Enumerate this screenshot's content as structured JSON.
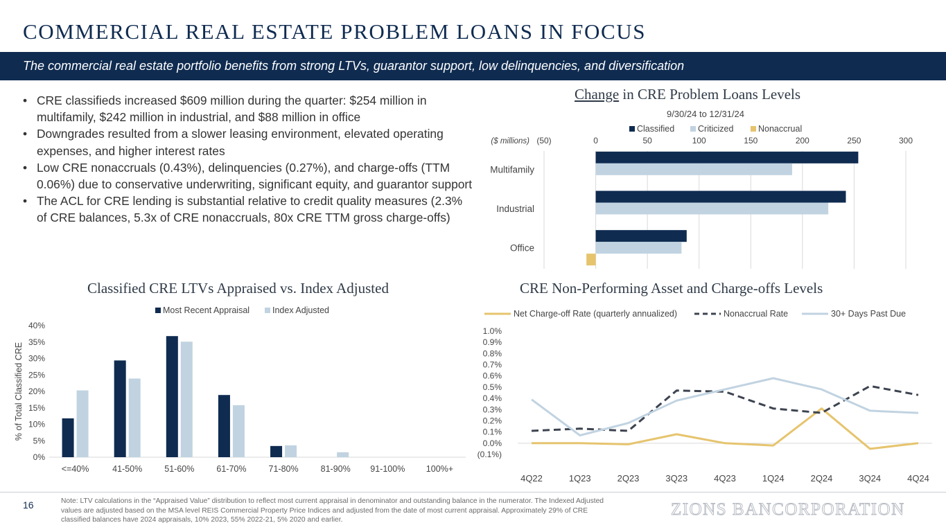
{
  "header": {
    "title": "COMMERCIAL REAL ESTATE PROBLEM LOANS IN FOCUS",
    "subtitle": "The commercial real estate portfolio benefits from strong LTVs, guarantor support, low delinquencies, and diversification"
  },
  "bullets": [
    "CRE classifieds increased $609 million during the quarter: $254 million in multifamily, $242 million in industrial, and $88 million in office",
    "Downgrades resulted from a slower leasing environment, elevated operating expenses, and higher interest rates",
    "Low CRE nonaccruals (0.43%), delinquencies (0.27%), and charge-offs (TTM 0.06%) due to conservative underwriting, significant equity, and guarantor support",
    "The ACL for CRE lending is substantial relative to credit quality measures (2.3% of CRE balances, 5.3x of CRE nonaccruals, 80x CRE TTM gross charge-offs)"
  ],
  "colors": {
    "navy": "#0f2b50",
    "light_blue": "#c1d3e1",
    "gold": "#e6c46e",
    "dark_dash": "#3d4450",
    "grid": "#d9d9d9"
  },
  "chart_data": [
    {
      "id": "problem-loans",
      "type": "bar",
      "orientation": "horizontal",
      "title_underlined": "Change",
      "title_rest": " in CRE Problem Loans Levels",
      "subtitle": "9/30/24 to 12/31/24",
      "unit_label": "($ millions)",
      "categories": [
        "Multifamily",
        "Industrial",
        "Office"
      ],
      "series": [
        {
          "name": "Classified",
          "values": [
            254,
            242,
            88
          ]
        },
        {
          "name": "Criticized",
          "values": [
            190,
            225,
            83
          ]
        },
        {
          "name": "Nonaccrual",
          "values": [
            0,
            0,
            -9
          ]
        }
      ],
      "xlim": [
        -50,
        300
      ],
      "xticks": [
        -50,
        0,
        50,
        100,
        150,
        200,
        250,
        300
      ],
      "xtick_labels": [
        "(50)",
        "0",
        "50",
        "100",
        "150",
        "200",
        "250",
        "300"
      ],
      "legend": "top"
    },
    {
      "id": "ltv",
      "type": "bar",
      "title": "Classified CRE LTVs Appraised vs. Index Adjusted",
      "ylabel": "% of Total Classified CRE",
      "categories": [
        "<=40%",
        "41-50%",
        "51-60%",
        "61-70%",
        "71-80%",
        "81-90%",
        "91-100%",
        "100%+"
      ],
      "series": [
        {
          "name": "Most Recent Appraisal",
          "values": [
            11.8,
            29.4,
            36.8,
            18.9,
            3.4,
            0,
            0,
            0
          ]
        },
        {
          "name": "Index Adjusted",
          "values": [
            20.3,
            23.9,
            35.1,
            15.8,
            3.6,
            1.5,
            0,
            0
          ]
        }
      ],
      "ylim": [
        0,
        40
      ],
      "yticks": [
        0,
        5,
        10,
        15,
        20,
        25,
        30,
        35,
        40
      ],
      "ytick_labels": [
        "0%",
        "5%",
        "10%",
        "15%",
        "20%",
        "25%",
        "30%",
        "35%",
        "40%"
      ],
      "legend": "top"
    },
    {
      "id": "npa",
      "type": "line",
      "title": "CRE Non-Performing Asset and Charge-offs Levels",
      "categories": [
        "4Q22",
        "1Q23",
        "2Q23",
        "3Q23",
        "4Q23",
        "1Q24",
        "2Q24",
        "3Q24",
        "4Q24"
      ],
      "series": [
        {
          "name": "Net Charge-off Rate (quarterly annualized)",
          "style": "solid-gold",
          "values": [
            0.0,
            0.0,
            -0.01,
            0.08,
            0.0,
            -0.02,
            0.31,
            -0.05,
            0.0
          ]
        },
        {
          "name": "Nonaccrual Rate",
          "style": "dashed-dark",
          "values": [
            0.11,
            0.13,
            0.11,
            0.47,
            0.46,
            0.31,
            0.27,
            0.51,
            0.43
          ]
        },
        {
          "name": "30+ Days Past Due",
          "style": "solid-lightblue",
          "values": [
            0.39,
            0.07,
            0.18,
            0.38,
            0.48,
            0.58,
            0.48,
            0.29,
            0.27
          ]
        }
      ],
      "ylim": [
        -0.1,
        1.0
      ],
      "yticks": [
        -0.1,
        0.0,
        0.1,
        0.2,
        0.3,
        0.4,
        0.5,
        0.6,
        0.7,
        0.8,
        0.9,
        1.0
      ],
      "ytick_labels": [
        "(0.1%)",
        "0.0%",
        "0.1%",
        "0.2%",
        "0.3%",
        "0.4%",
        "0.5%",
        "0.6%",
        "0.7%",
        "0.8%",
        "0.9%",
        "1.0%"
      ],
      "legend": "top"
    }
  ],
  "footer": {
    "page_number": "16",
    "note": "Note: LTV calculations in the “Appraised Value” distribution to reflect most current appraisal in denominator and outstanding balance in the numerator. The Indexed Adjusted values are adjusted based on the MSA level REIS Commercial Property Price Indices and adjusted from the date of most current appraisal. Approximately 29% of CRE classified balances have 2024 appraisals, 10% 2023, 55% 2022-21, 5% 2020 and earlier.",
    "brand": "ZIONS BANCORPORATION"
  }
}
